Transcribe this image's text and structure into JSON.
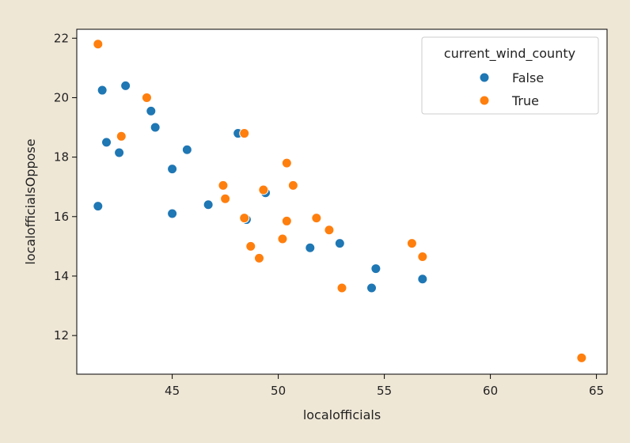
{
  "chart_data": {
    "type": "scatter",
    "title": "",
    "xlabel": "localofficials",
    "ylabel": "localofficialsOppose",
    "xlim": [
      40.5,
      65.5
    ],
    "ylim": [
      10.7,
      22.3
    ],
    "xticks": [
      45,
      50,
      55,
      60,
      65
    ],
    "yticks": [
      12,
      14,
      16,
      18,
      20,
      22
    ],
    "grid": false,
    "legend": {
      "title": "current_wind_county",
      "placement": "top-right"
    },
    "series": [
      {
        "name": "False",
        "color": "#1f77b4",
        "points": [
          [
            41.7,
            20.25
          ],
          [
            42.8,
            20.4
          ],
          [
            41.9,
            18.5
          ],
          [
            42.5,
            18.15
          ],
          [
            41.5,
            16.35
          ],
          [
            44.0,
            19.55
          ],
          [
            44.2,
            19.0
          ],
          [
            45.7,
            18.25
          ],
          [
            45.0,
            17.6
          ],
          [
            45.0,
            16.1
          ],
          [
            46.7,
            16.4
          ],
          [
            48.1,
            18.8
          ],
          [
            49.4,
            16.8
          ],
          [
            48.5,
            15.9
          ],
          [
            51.5,
            14.95
          ],
          [
            52.9,
            15.1
          ],
          [
            54.4,
            13.6
          ],
          [
            54.6,
            14.25
          ],
          [
            56.8,
            13.9
          ]
        ]
      },
      {
        "name": "True",
        "color": "#ff7f0e",
        "points": [
          [
            41.5,
            21.8
          ],
          [
            43.8,
            20.0
          ],
          [
            42.6,
            18.7
          ],
          [
            48.4,
            18.8
          ],
          [
            50.4,
            17.8
          ],
          [
            50.7,
            17.05
          ],
          [
            47.4,
            17.05
          ],
          [
            47.5,
            16.6
          ],
          [
            49.3,
            16.9
          ],
          [
            48.4,
            15.95
          ],
          [
            50.4,
            15.85
          ],
          [
            51.8,
            15.95
          ],
          [
            52.4,
            15.55
          ],
          [
            50.2,
            15.25
          ],
          [
            48.7,
            15.0
          ],
          [
            49.1,
            14.6
          ],
          [
            53.0,
            13.6
          ],
          [
            56.3,
            15.1
          ],
          [
            56.8,
            14.65
          ],
          [
            64.3,
            11.25
          ]
        ]
      }
    ]
  }
}
